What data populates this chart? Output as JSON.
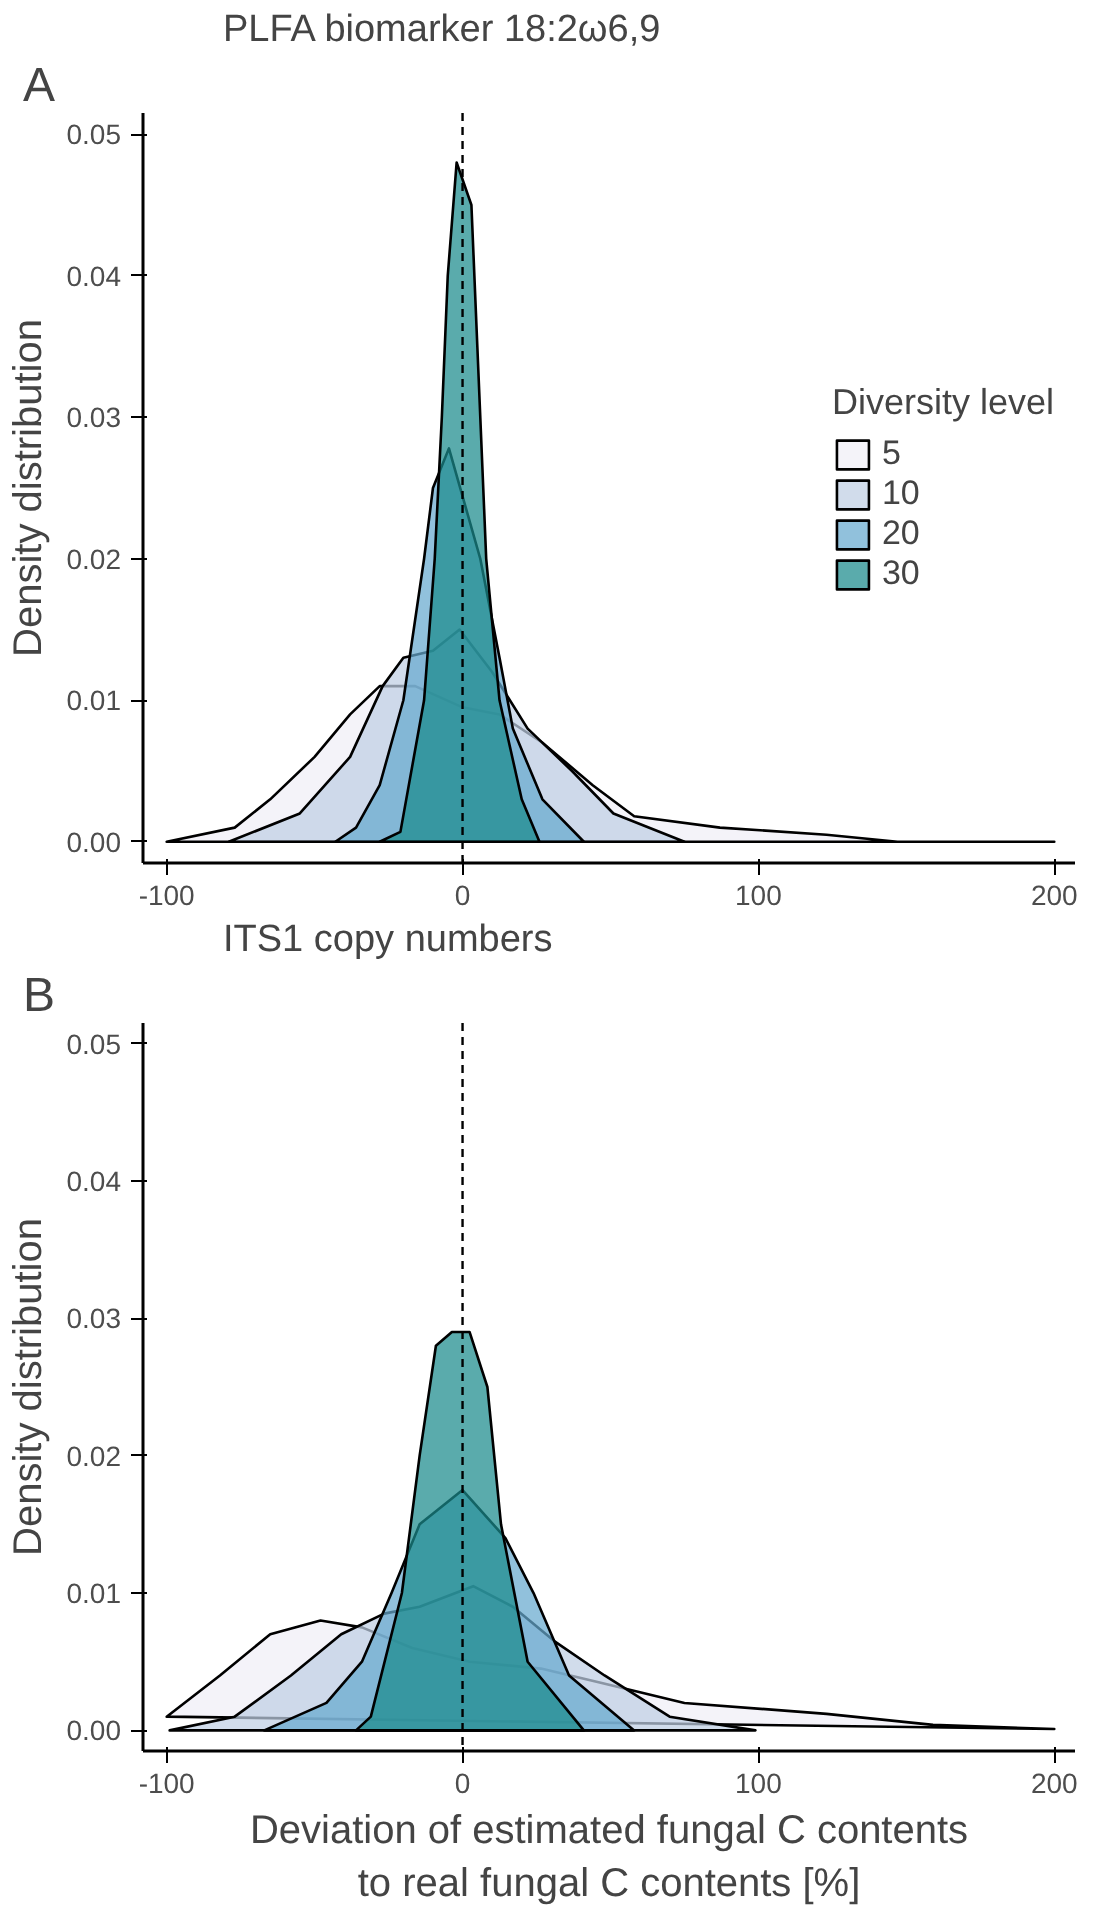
{
  "chart_data": [
    {
      "type": "area",
      "title": "PLFA biomarker 18:2ω6,9",
      "ylabel": "Density distribution",
      "legend_title": "Diversity level",
      "annotations": [
        "A"
      ],
      "xlim": [
        -108,
        207
      ],
      "ylim": [
        -0.0015,
        0.0515
      ],
      "xticks": [
        -100,
        0,
        100,
        200
      ],
      "yticks": [
        {
          "value": 0,
          "label": "0.00"
        },
        {
          "value": 0.01,
          "label": "0.01"
        },
        {
          "value": 0.02,
          "label": "0.02"
        },
        {
          "value": 0.03,
          "label": "0.03"
        },
        {
          "value": 0.04,
          "label": "0.04"
        },
        {
          "value": 0.05,
          "label": "0.05"
        }
      ],
      "grid": false,
      "legend": "right",
      "ref_lines": [
        {
          "axis": "x",
          "value": 0,
          "line_style": "dashed",
          "color": "#000000"
        }
      ],
      "series": [
        {
          "name": "5",
          "color": "#f0eef6",
          "x": [
            -100,
            -77,
            -65,
            -50,
            -38,
            -28,
            -16,
            0,
            12.5,
            27,
            44,
            58,
            87,
            123,
            147,
            200
          ],
          "values": [
            0,
            0.001,
            0.003,
            0.006,
            0.009,
            0.011,
            0.011,
            0.0095,
            0.009,
            0.007,
            0.004,
            0.0018,
            0.001,
            0.0005,
            0,
            0
          ]
        },
        {
          "name": "10",
          "color": "#bfcfe3",
          "x": [
            -79,
            -55,
            -38,
            -27,
            -20,
            -10,
            -1,
            10,
            22,
            37,
            51,
            75
          ],
          "values": [
            0,
            0.002,
            0.006,
            0.011,
            0.013,
            0.0135,
            0.015,
            0.012,
            0.008,
            0.005,
            0.002,
            0
          ]
        },
        {
          "name": "20",
          "color": "#67a9cf",
          "x": [
            -43,
            -36,
            -28,
            -20,
            -13,
            -10,
            -4.6,
            6,
            12.5,
            17,
            27,
            41
          ],
          "values": [
            0,
            0.001,
            0.004,
            0.01,
            0.02,
            0.025,
            0.0278,
            0.02,
            0.013,
            0.008,
            0.003,
            0
          ]
        },
        {
          "name": "30",
          "color": "#1a8a8c",
          "x": [
            -28,
            -21,
            -13,
            -9.4,
            -7,
            -5,
            -2,
            3,
            5,
            8,
            12.5,
            20,
            26
          ],
          "values": [
            0,
            0.0007,
            0.01,
            0.02,
            0.03,
            0.04,
            0.048,
            0.045,
            0.035,
            0.02,
            0.01,
            0.003,
            0
          ]
        }
      ]
    },
    {
      "type": "area",
      "title": "ITS1 copy numbers",
      "xlabel": "Deviation of estimated fungal C contents\nto real fungal C contents [%]",
      "ylabel": "Density distribution",
      "annotations": [
        "B"
      ],
      "xlim": [
        -108,
        207
      ],
      "ylim": [
        -0.0015,
        0.0515
      ],
      "xticks": [
        -100,
        0,
        100,
        200
      ],
      "yticks": [
        {
          "value": 0,
          "label": "0.00"
        },
        {
          "value": 0.01,
          "label": "0.01"
        },
        {
          "value": 0.02,
          "label": "0.02"
        },
        {
          "value": 0.03,
          "label": "0.03"
        },
        {
          "value": 0.04,
          "label": "0.04"
        },
        {
          "value": 0.05,
          "label": "0.05"
        }
      ],
      "grid": false,
      "legend": false,
      "ref_lines": [
        {
          "axis": "x",
          "value": 0,
          "line_style": "dashed",
          "color": "#000000"
        }
      ],
      "series": [
        {
          "color": "#f0eef6",
          "x": [
            -100,
            -82,
            -65,
            -48,
            -34,
            -17,
            2.4,
            26.5,
            46,
            75,
            123,
            159,
            200
          ],
          "values": [
            0.001,
            0.004,
            0.007,
            0.008,
            0.0075,
            0.006,
            0.005,
            0.0045,
            0.0035,
            0.002,
            0.0012,
            0.0004,
            0.0001
          ]
        },
        {
          "color": "#bfcfe3",
          "x": [
            -99,
            -77,
            -58,
            -41,
            -26.5,
            -14.5,
            3.6,
            17,
            31,
            48,
            70,
            99
          ],
          "values": [
            0,
            0.001,
            0.004,
            0.007,
            0.0085,
            0.009,
            0.0105,
            0.009,
            0.0065,
            0.004,
            0.001,
            0
          ]
        },
        {
          "color": "#67a9cf",
          "x": [
            -67,
            -46,
            -34,
            -24,
            -14.5,
            0,
            14.5,
            24,
            36,
            58
          ],
          "values": [
            0,
            0.002,
            0.005,
            0.01,
            0.015,
            0.0175,
            0.014,
            0.01,
            0.004,
            0
          ]
        },
        {
          "color": "#1a8a8c",
          "x": [
            -36,
            -31,
            -20.5,
            -14.5,
            -9,
            -3.6,
            2.4,
            8.4,
            13,
            22,
            41
          ],
          "values": [
            0,
            0.001,
            0.01,
            0.02,
            0.028,
            0.029,
            0.029,
            0.025,
            0.015,
            0.005,
            0
          ]
        }
      ]
    }
  ]
}
